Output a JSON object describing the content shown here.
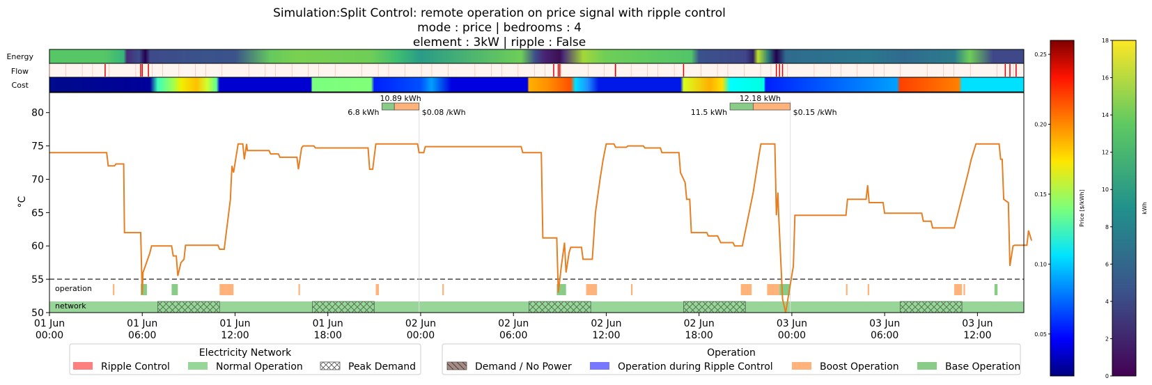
{
  "title_lines": [
    "Simulation:Split Control: remote operation on price signal with ripple control",
    "mode : price | bedrooms : 4",
    "element : 3kW | ripple : False"
  ],
  "strip_labels": {
    "energy": "Energy",
    "flow": "Flow",
    "cost": "Cost"
  },
  "chart_data": {
    "type": "line",
    "ylabel": "°C",
    "ylim": [
      50,
      83
    ],
    "xlim_hours": [
      0,
      63
    ],
    "x_ticks": [
      {
        "top": "01 Jun",
        "bottom": "00:00"
      },
      {
        "top": "01 Jun",
        "bottom": "06:00"
      },
      {
        "top": "01 Jun",
        "bottom": "12:00"
      },
      {
        "top": "01 Jun",
        "bottom": "18:00"
      },
      {
        "top": "02 Jun",
        "bottom": "00:00"
      },
      {
        "top": "02 Jun",
        "bottom": "06:00"
      },
      {
        "top": "02 Jun",
        "bottom": "12:00"
      },
      {
        "top": "02 Jun",
        "bottom": "18:00"
      },
      {
        "top": "03 Jun",
        "bottom": "00:00"
      },
      {
        "top": "03 Jun",
        "bottom": "06:00"
      },
      {
        "top": "03 Jun",
        "bottom": "12:00"
      }
    ],
    "y_ticks": [
      "50",
      "55",
      "60",
      "65",
      "70",
      "75",
      "80"
    ],
    "threshold": 55,
    "series": [
      {
        "color": "#e67e22",
        "points": [
          [
            0,
            74
          ],
          [
            3.7,
            74
          ],
          [
            3.8,
            72
          ],
          [
            4.2,
            72
          ],
          [
            4.3,
            72.3
          ],
          [
            4.8,
            72.3
          ],
          [
            4.85,
            62
          ],
          [
            5.9,
            62
          ],
          [
            6,
            52.7
          ],
          [
            6.05,
            56
          ],
          [
            6.2,
            57
          ],
          [
            6.5,
            59
          ],
          [
            6.6,
            60
          ],
          [
            7.9,
            60
          ],
          [
            8,
            58.5
          ],
          [
            8.2,
            58.5
          ],
          [
            8.3,
            55.5
          ],
          [
            8.5,
            57.5
          ],
          [
            8.7,
            58
          ],
          [
            8.8,
            60.1
          ],
          [
            10.9,
            60.1
          ],
          [
            11,
            59.5
          ],
          [
            11.3,
            59.5
          ],
          [
            11.7,
            67
          ],
          [
            11.8,
            72
          ],
          [
            11.9,
            71
          ],
          [
            12.2,
            75.3
          ],
          [
            12.5,
            75.3
          ],
          [
            12.6,
            73
          ],
          [
            12.75,
            75.3
          ],
          [
            12.8,
            74.3
          ],
          [
            14.2,
            74.3
          ],
          [
            14.3,
            73.8
          ],
          [
            14.8,
            73.8
          ],
          [
            14.9,
            73.3
          ],
          [
            16,
            73.3
          ],
          [
            16.1,
            71.5
          ],
          [
            16.3,
            74.7
          ],
          [
            16.4,
            75
          ],
          [
            17.1,
            75
          ],
          [
            17.2,
            74.7
          ],
          [
            20.6,
            74.7
          ],
          [
            20.7,
            71.5
          ],
          [
            20.9,
            71.5
          ],
          [
            21.1,
            75.3
          ],
          [
            23.8,
            75.3
          ],
          [
            23.9,
            74
          ],
          [
            24.2,
            74
          ],
          [
            24.3,
            74.9
          ],
          [
            30.5,
            74.9
          ],
          [
            30.6,
            74
          ],
          [
            31.8,
            74
          ],
          [
            31.9,
            61.2
          ],
          [
            32.8,
            61.2
          ],
          [
            32.9,
            53
          ],
          [
            33.1,
            57
          ],
          [
            33.3,
            60.5
          ],
          [
            33.4,
            56
          ],
          [
            33.6,
            59
          ],
          [
            33.7,
            59.8
          ],
          [
            34.4,
            59.8
          ],
          [
            34.5,
            58
          ],
          [
            35.1,
            58
          ],
          [
            35.3,
            65
          ],
          [
            35.6,
            70
          ],
          [
            35.8,
            73
          ],
          [
            36,
            75.3
          ],
          [
            36.5,
            75.3
          ],
          [
            36.6,
            74.8
          ],
          [
            37.3,
            74.8
          ],
          [
            37.4,
            75
          ],
          [
            38.4,
            75
          ],
          [
            38.5,
            74.7
          ],
          [
            39.5,
            74.7
          ],
          [
            39.6,
            74
          ],
          [
            40.7,
            74
          ],
          [
            40.8,
            71
          ],
          [
            41.1,
            69.5
          ],
          [
            41.2,
            67
          ],
          [
            41.4,
            67
          ],
          [
            41.5,
            62
          ],
          [
            42.5,
            62
          ],
          [
            42.6,
            61.5
          ],
          [
            43.2,
            61.5
          ],
          [
            43.4,
            60.5
          ],
          [
            44.2,
            60.5
          ],
          [
            44.3,
            60
          ],
          [
            44.8,
            60
          ],
          [
            45.5,
            68
          ],
          [
            45.9,
            74
          ],
          [
            46,
            75.3
          ],
          [
            46.9,
            75.3
          ],
          [
            47,
            64.6
          ],
          [
            47.1,
            68
          ],
          [
            47.15,
            64.6
          ],
          [
            47.4,
            52
          ],
          [
            47.6,
            50
          ],
          [
            48.1,
            57
          ],
          [
            48.2,
            64.6
          ],
          [
            51.5,
            64.6
          ],
          [
            51.6,
            67
          ],
          [
            52.8,
            67
          ],
          [
            52.9,
            69.1
          ],
          [
            53,
            66.5
          ],
          [
            53.9,
            66.5
          ],
          [
            54,
            64.9
          ],
          [
            56.4,
            64.9
          ],
          [
            56.5,
            63.7
          ],
          [
            57,
            63.7
          ],
          [
            57.1,
            62.7
          ],
          [
            58.5,
            62.7
          ],
          [
            59.4,
            71
          ],
          [
            59.6,
            73
          ],
          [
            59.9,
            75.3
          ],
          [
            61.4,
            75.3
          ],
          [
            61.5,
            73
          ],
          [
            61.6,
            73
          ],
          [
            61.7,
            67
          ],
          [
            62,
            66.5
          ],
          [
            62.1,
            57
          ],
          [
            62.3,
            60
          ],
          [
            62.4,
            60.1
          ],
          [
            63.2,
            60.1
          ],
          [
            63.3,
            62.3
          ],
          [
            63.5,
            60.8
          ]
        ]
      }
    ],
    "annotations": [
      {
        "total": "10.89 kWh",
        "left": "6.8 kWh",
        "right": "$0.08 /kWh",
        "start_h": 21.5,
        "split_h": 22.3,
        "end_h": 23.9
      },
      {
        "total": "12.18 kWh",
        "left": "11.5 kWh",
        "right": "$0.15 /kWh",
        "start_h": 44,
        "split_h": 45.5,
        "end_h": 47.9
      }
    ],
    "band_labels": {
      "operation": "operation",
      "network": "network"
    },
    "operation_boost": [
      [
        4.1,
        4.2
      ],
      [
        11,
        11.9
      ],
      [
        16.1,
        16.2
      ],
      [
        21.1,
        21.3
      ],
      [
        25.4,
        25.5
      ],
      [
        34.7,
        35.4
      ],
      [
        37.6,
        37.7
      ],
      [
        44.7,
        45.4
      ],
      [
        46.4,
        47.2
      ],
      [
        51.5,
        51.6
      ],
      [
        52.9,
        53
      ],
      [
        58.5,
        59
      ],
      [
        59.1,
        59.2
      ]
    ],
    "operation_base": [
      [
        5.9,
        6.3
      ],
      [
        7.9,
        8.3
      ],
      [
        32.8,
        33.4
      ],
      [
        47.2,
        47.9
      ],
      [
        61.1,
        61.3
      ]
    ],
    "network_peak": [
      [
        7,
        11
      ],
      [
        17,
        21
      ],
      [
        31,
        35
      ],
      [
        41,
        45
      ],
      [
        55,
        59
      ]
    ],
    "network_ripple_lines": [
      3.6,
      5.9,
      6,
      32.8,
      47
    ],
    "strip_price_stops": [
      [
        0,
        "#000a8c"
      ],
      [
        6.5,
        "#00009a"
      ],
      [
        7,
        "#3cffbe"
      ],
      [
        8,
        "#a0ff50"
      ],
      [
        8.5,
        "#f0f000"
      ],
      [
        9.5,
        "#ffc000"
      ],
      [
        10.2,
        "#d0ff30"
      ],
      [
        10.8,
        "#60ff90"
      ],
      [
        11,
        "#0000d0"
      ],
      [
        16.9,
        "#0000d0"
      ],
      [
        17,
        "#7cff80"
      ],
      [
        20.8,
        "#80ff78"
      ],
      [
        21,
        "#0020ff"
      ],
      [
        24,
        "#0050ff"
      ],
      [
        24.7,
        "#00a0ff"
      ],
      [
        26,
        "#0000e0"
      ],
      [
        30.9,
        "#0000e0"
      ],
      [
        31,
        "#ffb000"
      ],
      [
        32.2,
        "#ff9000"
      ],
      [
        33.7,
        "#ff5000"
      ],
      [
        34,
        "#00e0ff"
      ],
      [
        34.8,
        "#1e90ff"
      ],
      [
        35.5,
        "#0018e8"
      ],
      [
        40.8,
        "#0018e8"
      ],
      [
        41,
        "#d8ff20"
      ],
      [
        42.7,
        "#ffb000"
      ],
      [
        43.5,
        "#ffe000"
      ],
      [
        44,
        "#00ffff"
      ],
      [
        46.2,
        "#00ffe0"
      ],
      [
        46.3,
        "#0020ff"
      ],
      [
        54.8,
        "#00a0ff"
      ],
      [
        55,
        "#ff4000"
      ],
      [
        58.8,
        "#ff8000"
      ],
      [
        59,
        "#00e0ff"
      ],
      [
        63,
        "#00e0ff"
      ]
    ],
    "strip_energy_stops": [
      [
        0,
        "#56c667"
      ],
      [
        3.6,
        "#56c667"
      ],
      [
        4.8,
        "#36b67b"
      ],
      [
        5,
        "#482c78"
      ],
      [
        5.8,
        "#3b4d8a"
      ],
      [
        6.2,
        "#240050"
      ],
      [
        6.5,
        "#3e4a89"
      ],
      [
        10,
        "#3a538b"
      ],
      [
        12,
        "#3b528b"
      ],
      [
        14.3,
        "#65c95e"
      ],
      [
        16,
        "#7ad151"
      ],
      [
        20.8,
        "#6ece58"
      ],
      [
        22.5,
        "#3ebd71"
      ],
      [
        24,
        "#2a9b88"
      ],
      [
        30.5,
        "#6ece58"
      ],
      [
        31.4,
        "#3d4f8a"
      ],
      [
        32,
        "#482474"
      ],
      [
        33,
        "#3b0f52"
      ],
      [
        33.2,
        "#482878"
      ],
      [
        34.5,
        "#a2d73a"
      ],
      [
        36,
        "#6ece58"
      ],
      [
        41.5,
        "#52c569"
      ],
      [
        42,
        "#3a528b"
      ],
      [
        45,
        "#3f478a"
      ],
      [
        45.5,
        "#2d1f61"
      ],
      [
        45.8,
        "#bfe12d"
      ],
      [
        46.5,
        "#26787c"
      ],
      [
        47,
        "#240050"
      ],
      [
        47.6,
        "#2f6b8e"
      ],
      [
        53,
        "#2a788e"
      ],
      [
        55.2,
        "#306a8e"
      ],
      [
        58.5,
        "#2b7c8c"
      ],
      [
        59.5,
        "#6ece58"
      ],
      [
        61,
        "#3f4889"
      ],
      [
        63,
        "#3f4889"
      ]
    ],
    "flow_lines": [
      3.6,
      5.9,
      6,
      6.4,
      32.6,
      32.9,
      33,
      36.6,
      41,
      47,
      47.2,
      47.4,
      61.8,
      62.1,
      62.5
    ]
  },
  "price_colorbar": {
    "label": "Price [$/kWh]",
    "ticks": [
      "0.05",
      "0.10",
      "0.15",
      "0.20",
      "0.25"
    ],
    "range": [
      0.02,
      0.26
    ]
  },
  "energy_colorbar": {
    "label": "kWh",
    "ticks": [
      "0",
      "2",
      "4",
      "6",
      "8",
      "10",
      "12",
      "14",
      "16",
      "18"
    ],
    "range": [
      0,
      18
    ]
  },
  "legends": {
    "network": {
      "title": "Electricity Network",
      "items": [
        {
          "label": "Ripple Control",
          "color": "#ff7f7f",
          "hatch": false
        },
        {
          "label": "Normal Operation",
          "color": "#98d598",
          "hatch": false
        },
        {
          "label": "Peak Demand",
          "color": "#ffffff",
          "hatch": true
        }
      ]
    },
    "operation": {
      "title": "Operation",
      "items": [
        {
          "label": "Demand / No Power",
          "color": "#a88a84",
          "hatch": true
        },
        {
          "label": "Operation during Ripple Control",
          "color": "#7777ff",
          "hatch": false
        },
        {
          "label": "Boost Operation",
          "color": "#ffb27a",
          "hatch": false
        },
        {
          "label": "Base Operation",
          "color": "#88cc88",
          "hatch": false
        }
      ]
    }
  }
}
